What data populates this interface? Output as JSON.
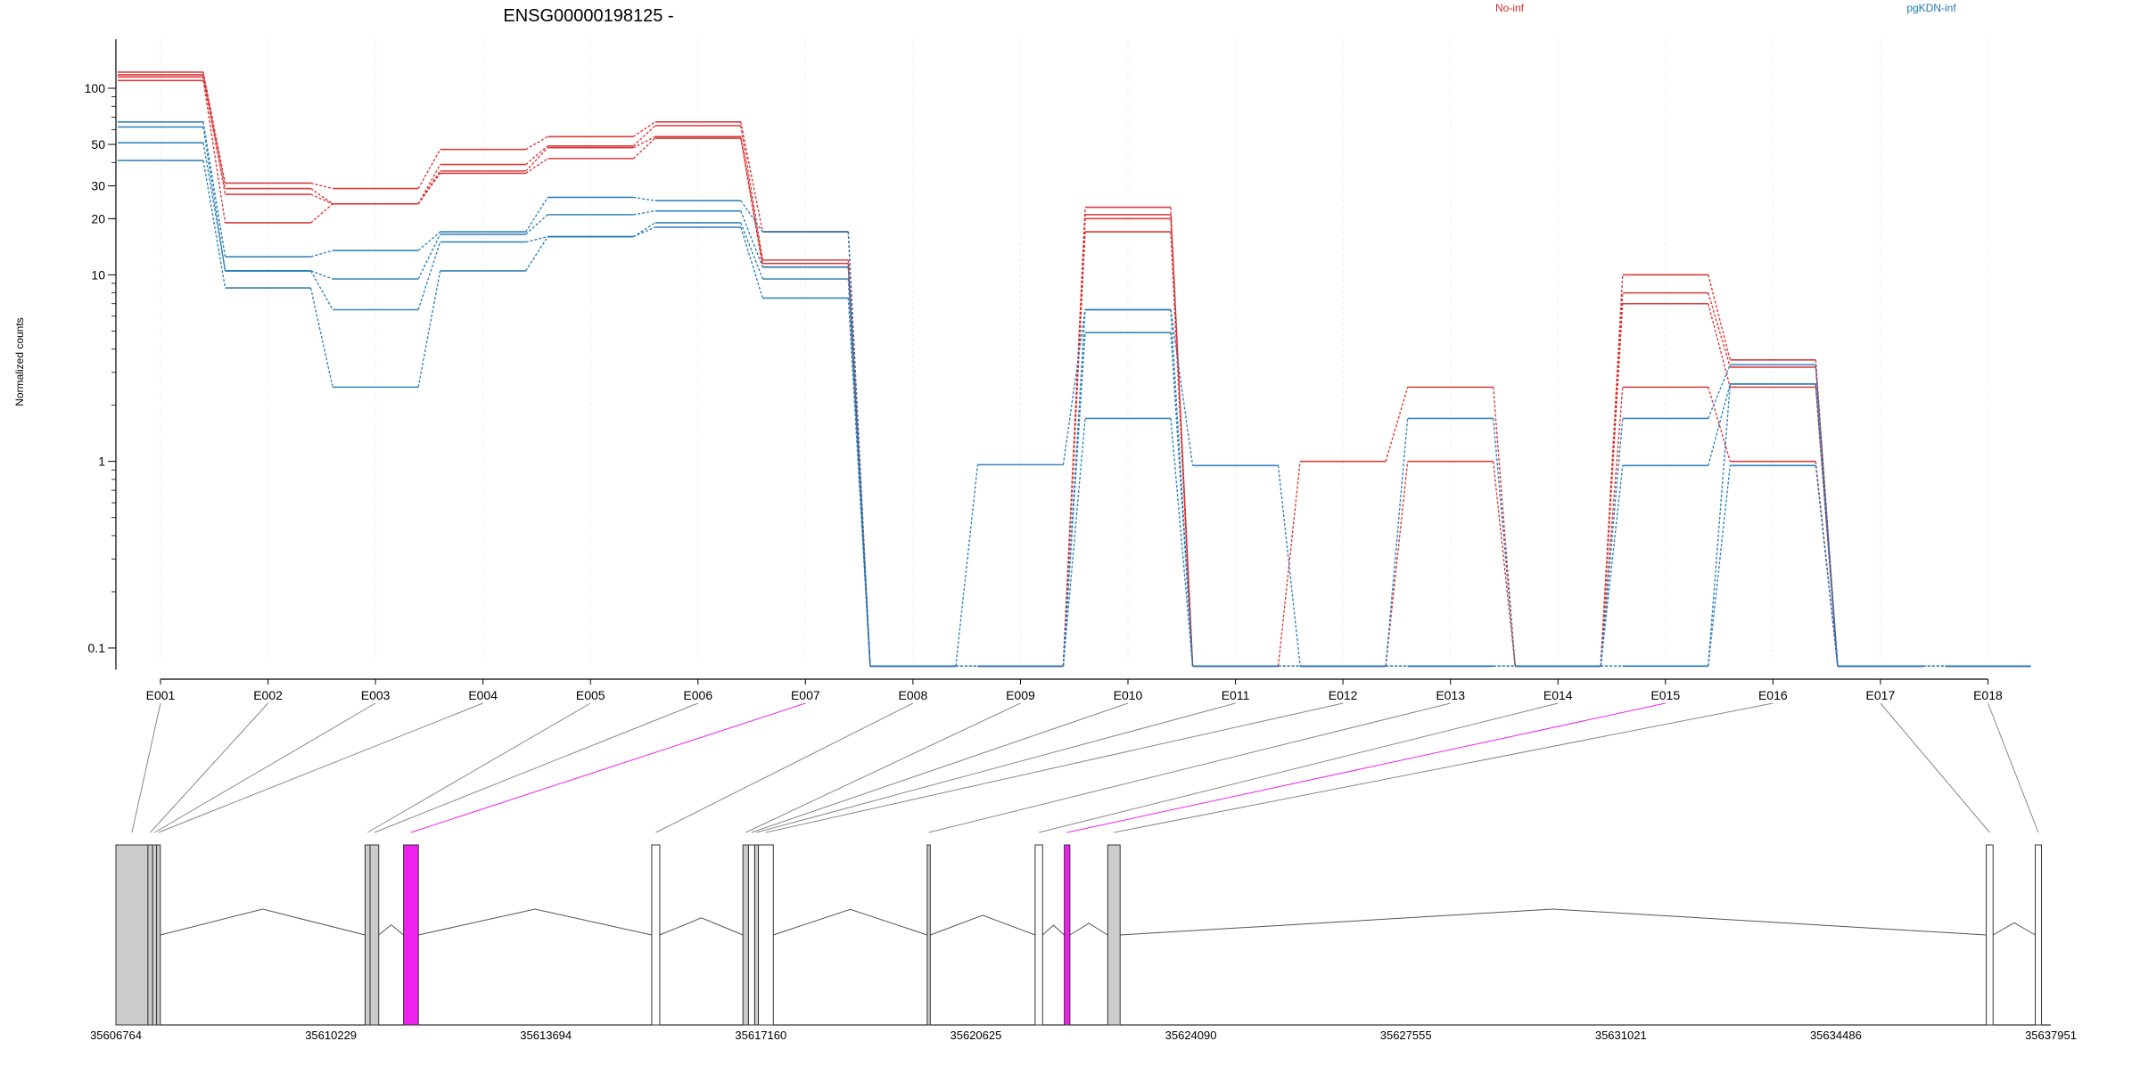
{
  "chart_data": {
    "type": "line",
    "title": "ENSG00000198125 -",
    "ylabel": "Normalized counts",
    "yscale": "log",
    "ylim": [
      0.08,
      150
    ],
    "yticks": [
      0.1,
      1,
      10,
      20,
      30,
      50,
      100
    ],
    "ytick_labels": [
      "0.1",
      "1",
      "10",
      "20",
      "30",
      "50",
      "100"
    ],
    "categories": [
      "E001",
      "E002",
      "E003",
      "E004",
      "E005",
      "E006",
      "E007",
      "E008",
      "E009",
      "E010",
      "E011",
      "E012",
      "E013",
      "E014",
      "E015",
      "E016",
      "E017",
      "E018"
    ],
    "legend": [
      {
        "label": "No-inf",
        "color": "#d62728"
      },
      {
        "label": "pgKDN-inf",
        "color": "#1f77b4"
      }
    ],
    "series": [
      {
        "group": "No-inf",
        "color": "#d62728",
        "values": [
          122,
          31,
          29,
          47,
          55,
          66,
          17,
          0.08,
          0.08,
          23,
          0.08,
          1,
          2.5,
          0.08,
          10,
          3.5,
          0.08,
          0.08
        ]
      },
      {
        "group": "No-inf",
        "color": "#d62728",
        "values": [
          118,
          29,
          24,
          39,
          49,
          63,
          12,
          0.08,
          0.08,
          21,
          0.08,
          0.08,
          0.08,
          0.08,
          8,
          3.2,
          0.08,
          0.08
        ]
      },
      {
        "group": "No-inf",
        "color": "#d62728",
        "values": [
          115,
          27,
          24,
          36,
          48,
          55,
          11.5,
          0.08,
          0.08,
          20,
          0.08,
          0.08,
          1,
          0.08,
          7,
          2.5,
          0.08,
          0.08
        ]
      },
      {
        "group": "No-inf",
        "color": "#d62728",
        "values": [
          110,
          19,
          24,
          35,
          42,
          54,
          11,
          0.08,
          0.08,
          17,
          0.08,
          0.08,
          0.08,
          0.08,
          2.5,
          1,
          0.08,
          0.08
        ]
      },
      {
        "group": "pgKDN-inf",
        "color": "#1f77b4",
        "values": [
          66,
          12.5,
          13.5,
          17,
          26,
          25,
          17,
          0.08,
          0.96,
          6.5,
          0.95,
          0.08,
          1.7,
          0.08,
          1.7,
          3.3,
          0.08,
          0.08
        ]
      },
      {
        "group": "pgKDN-inf",
        "color": "#1f77b4",
        "values": [
          62,
          10.5,
          9.5,
          16.5,
          21,
          22,
          11,
          0.08,
          0.08,
          6.5,
          0.08,
          0.08,
          0.08,
          0.08,
          0.95,
          2.6,
          0.08,
          0.08
        ]
      },
      {
        "group": "pgKDN-inf",
        "color": "#1f77b4",
        "values": [
          51,
          10.5,
          6.5,
          15,
          16,
          19,
          9.5,
          0.08,
          0.08,
          4.9,
          0.08,
          0.08,
          0.08,
          0.08,
          0.08,
          2.6,
          0.08,
          0.08
        ]
      },
      {
        "group": "pgKDN-inf",
        "color": "#1f77b4",
        "values": [
          41,
          8.5,
          2.5,
          10.5,
          16,
          18,
          7.5,
          0.08,
          0.08,
          1.7,
          0.08,
          0.08,
          0.08,
          0.08,
          0.08,
          0.95,
          0.08,
          0.08
        ]
      }
    ],
    "gene_model": {
      "coordinate_labels": [
        "35606764",
        "35610229",
        "35613694",
        "35617160",
        "35620625",
        "35624090",
        "35627555",
        "35631021",
        "35634486",
        "35637951"
      ],
      "coordinate_range": [
        35606764,
        35637951
      ],
      "highlight_color": "#ee22ee",
      "exons": [
        {
          "id": "E001",
          "start": 35606764,
          "end": 35607280,
          "fill": "#cccccc"
        },
        {
          "id": "E002",
          "start": 35607280,
          "end": 35607355,
          "fill": "#cccccc"
        },
        {
          "id": "E003",
          "start": 35607355,
          "end": 35607420,
          "fill": "#cccccc"
        },
        {
          "id": "E004",
          "start": 35607420,
          "end": 35607480,
          "fill": "#cccccc"
        },
        {
          "id": "E005",
          "start": 35610780,
          "end": 35610860,
          "fill": "#cccccc"
        },
        {
          "id": "E006",
          "start": 35610860,
          "end": 35611000,
          "fill": "#cccccc"
        },
        {
          "id": "E007",
          "start": 35611400,
          "end": 35611640,
          "fill": "#ee22ee",
          "highlight": true
        },
        {
          "id": "E008",
          "start": 35615400,
          "end": 35615530,
          "fill": "#ffffff"
        },
        {
          "id": "E009",
          "start": 35616870,
          "end": 35616960,
          "fill": "#cccccc"
        },
        {
          "id": "E010",
          "start": 35616960,
          "end": 35617060,
          "fill": "#ffffff"
        },
        {
          "id": "E011",
          "start": 35617060,
          "end": 35617120,
          "fill": "#cccccc"
        },
        {
          "id": "E012",
          "start": 35617120,
          "end": 35617360,
          "fill": "#ffffff"
        },
        {
          "id": "E013",
          "start": 35619840,
          "end": 35619890,
          "fill": "#cccccc"
        },
        {
          "id": "E014",
          "start": 35621580,
          "end": 35621700,
          "fill": "#ffffff"
        },
        {
          "id": "E015",
          "start": 35622050,
          "end": 35622140,
          "fill": "#ee22ee",
          "highlight": true
        },
        {
          "id": "E016",
          "start": 35622750,
          "end": 35622950,
          "fill": "#cccccc"
        },
        {
          "id": "E017",
          "start": 35636910,
          "end": 35637020,
          "fill": "#ffffff"
        },
        {
          "id": "E018",
          "start": 35637700,
          "end": 35637800,
          "fill": "#ffffff"
        }
      ]
    }
  }
}
